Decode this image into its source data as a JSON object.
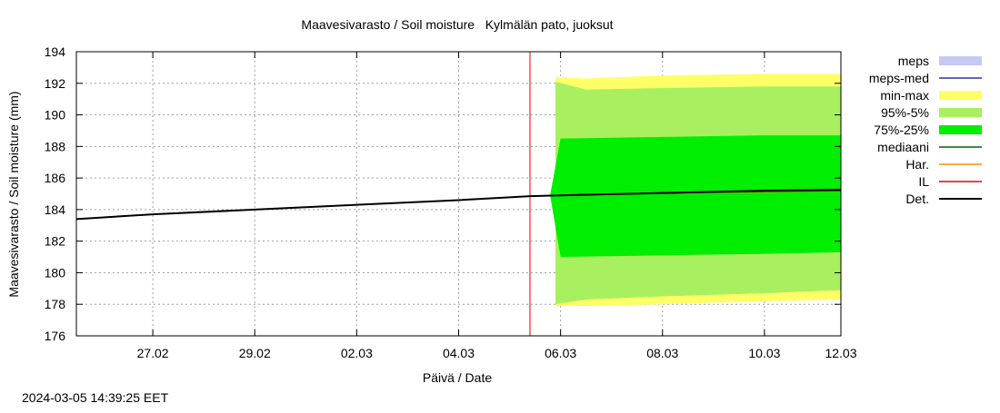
{
  "chart_data": {
    "type": "area",
    "title": "Maavesivarasto / Soil moisture   Kylmälän pato, juoksut",
    "xlabel": "Päivä / Date",
    "ylabel": "Maavesivarasto / Soil moisture (mm)",
    "timestamp": "2024-03-05 14:39:25 EET",
    "xlim": [
      -0.5,
      14.5
    ],
    "ylim": [
      176,
      194
    ],
    "grid": true,
    "x_ticks": [
      {
        "x": 1,
        "label": "27.02"
      },
      {
        "x": 3,
        "label": "29.02"
      },
      {
        "x": 5,
        "label": "02.03"
      },
      {
        "x": 7,
        "label": "04.03"
      },
      {
        "x": 9,
        "label": "06.03"
      },
      {
        "x": 11,
        "label": "08.03"
      },
      {
        "x": 13,
        "label": "10.03"
      },
      {
        "x": 15,
        "label": "12.03"
      }
    ],
    "y_ticks": [
      176,
      178,
      180,
      182,
      184,
      186,
      188,
      190,
      192,
      194
    ],
    "forecast_start_x": 8.4,
    "legend": [
      {
        "label": "meps",
        "kind": "box",
        "color": "#c8c8f5"
      },
      {
        "label": "meps-med",
        "kind": "line",
        "color": "#3030a0"
      },
      {
        "label": "min-max",
        "kind": "box",
        "color": "#ffff66"
      },
      {
        "label": "95%-5%",
        "kind": "box",
        "color": "#a8f060"
      },
      {
        "label": "75%-25%",
        "kind": "box",
        "color": "#00ee00"
      },
      {
        "label": "mediaani",
        "kind": "line",
        "color": "#006400"
      },
      {
        "label": "Har.",
        "kind": "line",
        "color": "#ff8c00"
      },
      {
        "label": "IL",
        "kind": "line",
        "color": "#e00000"
      },
      {
        "label": "Det.",
        "kind": "line",
        "color": "#000000"
      }
    ],
    "bands": [
      {
        "name": "min-max",
        "color": "#ffff66",
        "x": [
          8.9,
          9.5,
          11,
          13,
          15
        ],
        "upper": [
          192.4,
          192.3,
          192.5,
          192.6,
          192.6
        ],
        "lower": [
          177.9,
          177.9,
          178.0,
          178.2,
          178.3
        ]
      },
      {
        "name": "95%-5%",
        "color": "#a8f060",
        "x": [
          8.9,
          9.5,
          11,
          13,
          15
        ],
        "upper": [
          192.1,
          191.6,
          191.7,
          191.8,
          191.8
        ],
        "lower": [
          178.0,
          178.3,
          178.5,
          178.7,
          178.9
        ]
      },
      {
        "name": "75%-25%",
        "color": "#00ee00",
        "x": [
          8.8,
          9.0,
          11,
          13,
          15
        ],
        "upper": [
          185.0,
          188.5,
          188.6,
          188.7,
          188.7
        ],
        "lower": [
          184.8,
          181.0,
          181.1,
          181.2,
          181.3
        ]
      }
    ],
    "series": [
      {
        "name": "Det.",
        "color": "#000000",
        "x": [
          -0.5,
          1,
          3,
          5,
          7,
          8.4,
          9,
          11,
          13,
          15
        ],
        "values": [
          183.4,
          183.7,
          184.0,
          184.3,
          184.6,
          184.85,
          184.9,
          185.05,
          185.2,
          185.25
        ]
      },
      {
        "name": "IL",
        "color": "#e00000",
        "x": [
          8.4,
          9,
          11,
          13,
          15
        ],
        "values": [
          184.85,
          184.9,
          185.05,
          185.15,
          185.2
        ]
      },
      {
        "name": "mediaani",
        "color": "#006400",
        "x": [
          8.4,
          9,
          11,
          13,
          15
        ],
        "values": [
          184.85,
          184.9,
          185.05,
          185.2,
          185.25
        ]
      }
    ]
  }
}
